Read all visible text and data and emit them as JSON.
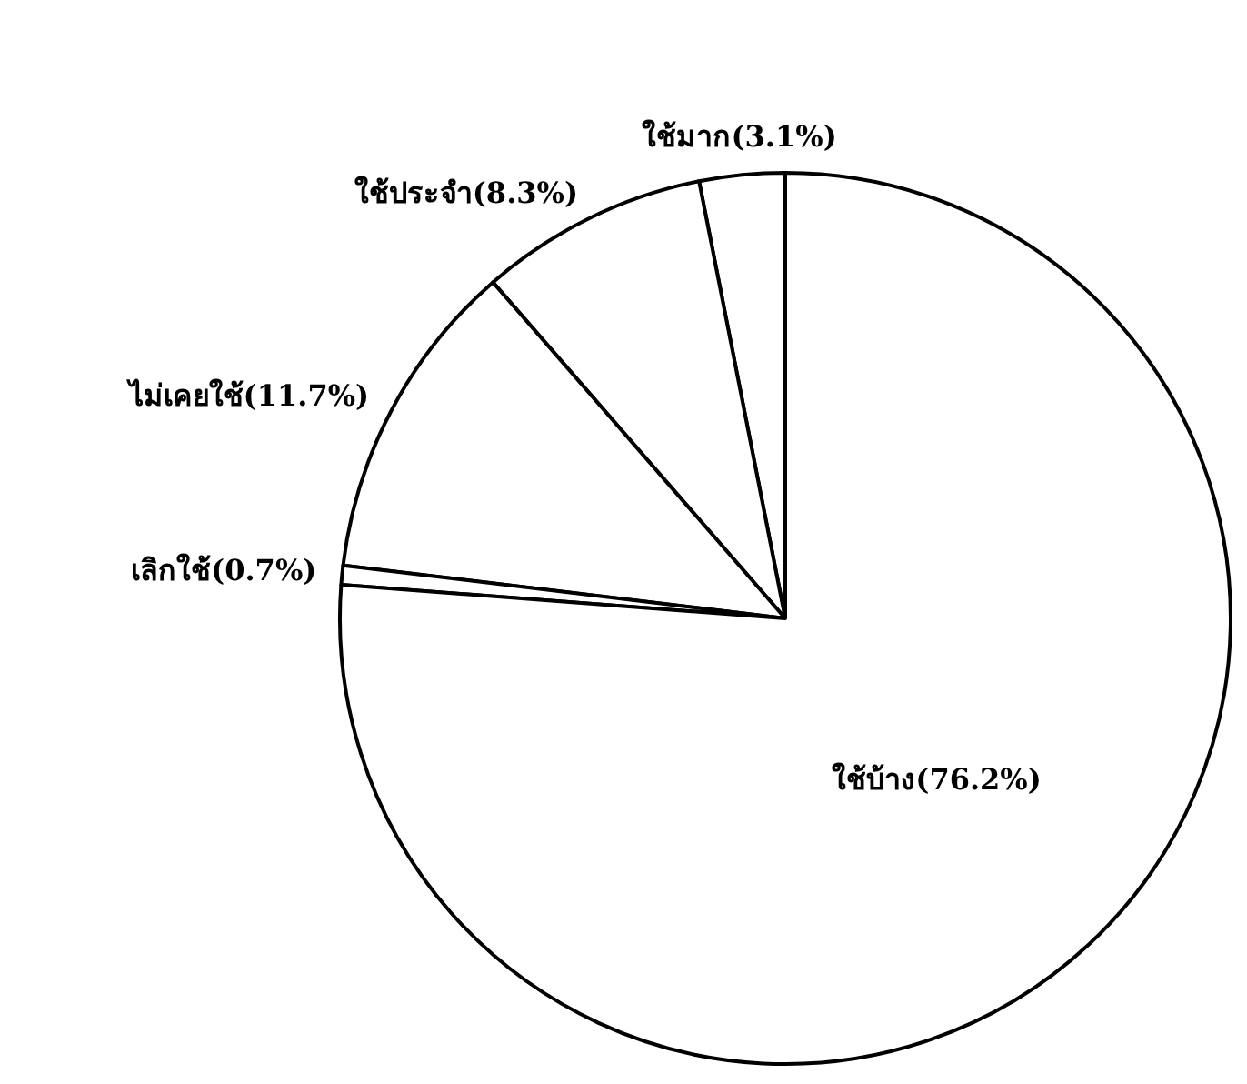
{
  "chart_data": {
    "type": "pie",
    "categories": [
      "ใช้มาก",
      "ใช้ประจำ",
      "ไม่เคยใช้",
      "เลิกใช้",
      "ใช้บ้าง"
    ],
    "values": [
      3.1,
      8.3,
      11.7,
      0.7,
      76.2
    ],
    "value_labels": [
      "(3.1%)",
      "(8.3%)",
      "(11.7%)",
      "(0.7%)",
      "(76.2%)"
    ],
    "colors": [
      "#ffffff",
      "#ffffff",
      "#ffffff",
      "#ffffff",
      "#ffffff"
    ]
  }
}
